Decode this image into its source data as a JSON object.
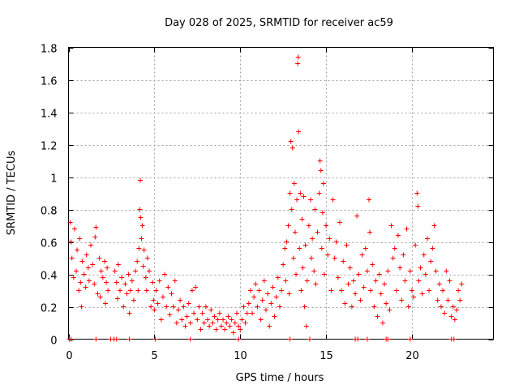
{
  "chart_data": {
    "type": "scatter",
    "title": "Day 028 of 2025, SRMTID for receiver ac59",
    "xlabel": "GPS time / hours",
    "ylabel": "SRMTID / TECUs",
    "xlim": [
      0,
      24.75
    ],
    "ylim": [
      0,
      1.8
    ],
    "xticks": [
      0,
      5,
      10,
      15,
      20
    ],
    "xtick_labels": [
      "0",
      "5",
      "10",
      "15",
      "20"
    ],
    "yticks": [
      0,
      0.2,
      0.4,
      0.6,
      0.8,
      1,
      1.2,
      1.4,
      1.6,
      1.8
    ],
    "ytick_labels": [
      "0",
      "0.2",
      "0.4",
      "0.6",
      "0.8",
      "1",
      "1.2",
      "1.4",
      "1.6",
      "1.8"
    ],
    "grid": true,
    "legend": "none",
    "marker": "+",
    "series_color": "#ff0000",
    "series": [
      {
        "name": "SRMTID",
        "points": [
          [
            0.1,
            0.72
          ],
          [
            0.15,
            0.6
          ],
          [
            0.2,
            0.5
          ],
          [
            0.3,
            0.38
          ],
          [
            0.35,
            0.68
          ],
          [
            0.45,
            0.42
          ],
          [
            0.5,
            0.55
          ],
          [
            0.6,
            0.3
          ],
          [
            0.65,
            0.62
          ],
          [
            0.7,
            0.35
          ],
          [
            0.75,
            0.2
          ],
          [
            0.8,
            0.48
          ],
          [
            0.9,
            0.4
          ],
          [
            1.0,
            0.32
          ],
          [
            1.05,
            0.52
          ],
          [
            1.15,
            0.44
          ],
          [
            1.2,
            0.36
          ],
          [
            1.3,
            0.58
          ],
          [
            1.4,
            0.46
          ],
          [
            1.5,
            0.34
          ],
          [
            1.55,
            0.63
          ],
          [
            1.6,
            0.69
          ],
          [
            1.7,
            0.28
          ],
          [
            1.8,
            0.5
          ],
          [
            1.85,
            0.26
          ],
          [
            1.9,
            0.42
          ],
          [
            2.0,
            0.38
          ],
          [
            2.1,
            0.48
          ],
          [
            2.15,
            0.22
          ],
          [
            2.2,
            0.35
          ],
          [
            2.25,
            0.44
          ],
          [
            2.3,
            0.3
          ],
          [
            2.7,
            0.42
          ],
          [
            2.8,
            0.35
          ],
          [
            2.85,
            0.25
          ],
          [
            2.9,
            0.46
          ],
          [
            3.0,
            0.3
          ],
          [
            3.1,
            0.38
          ],
          [
            3.2,
            0.2
          ],
          [
            3.3,
            0.34
          ],
          [
            3.4,
            0.28
          ],
          [
            3.5,
            0.4
          ],
          [
            3.55,
            0.16
          ],
          [
            3.6,
            0.3
          ],
          [
            3.7,
            0.36
          ],
          [
            3.8,
            0.24
          ],
          [
            3.9,
            0.42
          ],
          [
            4.0,
            0.48
          ],
          [
            4.05,
            0.3
          ],
          [
            4.1,
            0.56
          ],
          [
            4.15,
            0.8
          ],
          [
            4.18,
            0.98
          ],
          [
            4.2,
            0.75
          ],
          [
            4.25,
            0.62
          ],
          [
            4.3,
            0.7
          ],
          [
            4.35,
            0.45
          ],
          [
            4.4,
            0.55
          ],
          [
            4.5,
            0.38
          ],
          [
            4.55,
            0.3
          ],
          [
            4.6,
            0.5
          ],
          [
            4.7,
            0.42
          ],
          [
            4.8,
            0.2
          ],
          [
            4.9,
            0.35
          ],
          [
            4.95,
            0.24
          ],
          [
            5.0,
            0.18
          ],
          [
            5.1,
            0.3
          ],
          [
            5.2,
            0.22
          ],
          [
            5.3,
            0.36
          ],
          [
            5.4,
            0.12
          ],
          [
            5.5,
            0.26
          ],
          [
            5.6,
            0.4
          ],
          [
            5.7,
            0.2
          ],
          [
            5.8,
            0.32
          ],
          [
            5.9,
            0.15
          ],
          [
            6.0,
            0.28
          ],
          [
            6.1,
            0.2
          ],
          [
            6.2,
            0.36
          ],
          [
            6.3,
            0.1
          ],
          [
            6.4,
            0.18
          ],
          [
            6.5,
            0.24
          ],
          [
            6.6,
            0.12
          ],
          [
            6.7,
            0.2
          ],
          [
            6.8,
            0.08
          ],
          [
            6.9,
            0.14
          ],
          [
            7.0,
            0.22
          ],
          [
            7.1,
            0.1
          ],
          [
            7.2,
            0.3
          ],
          [
            7.3,
            0.16
          ],
          [
            7.4,
            0.32
          ],
          [
            7.5,
            0.12
          ],
          [
            7.6,
            0.2
          ],
          [
            7.7,
            0.06
          ],
          [
            7.8,
            0.16
          ],
          [
            7.9,
            0.1
          ],
          [
            8.0,
            0.2
          ],
          [
            8.1,
            0.12
          ],
          [
            8.2,
            0.08
          ],
          [
            8.3,
            0.18
          ],
          [
            8.4,
            0.1
          ],
          [
            8.5,
            0.14
          ],
          [
            8.6,
            0.06
          ],
          [
            8.7,
            0.12
          ],
          [
            8.8,
            0.16
          ],
          [
            8.9,
            0.08
          ],
          [
            9.0,
            0.12
          ],
          [
            9.1,
            0.06
          ],
          [
            9.2,
            0.1
          ],
          [
            9.3,
            0.14
          ],
          [
            9.4,
            0.08
          ],
          [
            9.5,
            0.12
          ],
          [
            9.6,
            0.04
          ],
          [
            9.7,
            0.1
          ],
          [
            9.8,
            0.16
          ],
          [
            9.9,
            0.08
          ],
          [
            10.0,
            0.06
          ],
          [
            10.1,
            0.12
          ],
          [
            10.2,
            0.2
          ],
          [
            10.3,
            0.1
          ],
          [
            10.4,
            0.16
          ],
          [
            10.5,
            0.22
          ],
          [
            10.6,
            0.3
          ],
          [
            10.7,
            0.16
          ],
          [
            10.8,
            0.26
          ],
          [
            10.9,
            0.34
          ],
          [
            11.0,
            0.2
          ],
          [
            11.1,
            0.3
          ],
          [
            11.2,
            0.12
          ],
          [
            11.3,
            0.24
          ],
          [
            11.4,
            0.36
          ],
          [
            11.5,
            0.18
          ],
          [
            11.6,
            0.28
          ],
          [
            11.7,
            0.08
          ],
          [
            11.8,
            0.22
          ],
          [
            11.9,
            0.32
          ],
          [
            12.0,
            0.14
          ],
          [
            12.1,
            0.26
          ],
          [
            12.2,
            0.38
          ],
          [
            12.3,
            0.2
          ],
          [
            12.4,
            0.3
          ],
          [
            12.5,
            0.46
          ],
          [
            12.6,
            0.56
          ],
          [
            12.65,
            0.36
          ],
          [
            12.7,
            0.6
          ],
          [
            12.8,
            0.7
          ],
          [
            12.85,
            0.28
          ],
          [
            12.9,
            0.9
          ],
          [
            12.95,
            1.22
          ],
          [
            13.0,
            0.8
          ],
          [
            13.05,
            1.18
          ],
          [
            13.1,
            0.5
          ],
          [
            13.15,
            0.96
          ],
          [
            13.2,
            0.66
          ],
          [
            13.25,
            0.4
          ],
          [
            13.3,
            0.86
          ],
          [
            13.35,
            1.7
          ],
          [
            13.38,
            1.74
          ],
          [
            13.4,
            1.28
          ],
          [
            13.45,
            0.56
          ],
          [
            13.5,
            0.9
          ],
          [
            13.55,
            0.3
          ],
          [
            13.6,
            0.74
          ],
          [
            13.65,
            0.44
          ],
          [
            13.7,
            0.88
          ],
          [
            13.75,
            0.2
          ],
          [
            13.8,
            0.58
          ],
          [
            13.85,
            0.08
          ],
          [
            13.9,
            0.36
          ],
          [
            14.0,
            0.7
          ],
          [
            14.1,
            0.86
          ],
          [
            14.15,
            0.5
          ],
          [
            14.2,
            0.62
          ],
          [
            14.3,
            0.42
          ],
          [
            14.35,
            0.8
          ],
          [
            14.4,
            0.34
          ],
          [
            14.5,
            0.66
          ],
          [
            14.6,
            0.9
          ],
          [
            14.65,
            1.1
          ],
          [
            14.7,
            1.04
          ],
          [
            14.75,
            0.56
          ],
          [
            14.8,
            0.78
          ],
          [
            14.85,
            0.96
          ],
          [
            14.9,
            0.4
          ],
          [
            15.0,
            0.7
          ],
          [
            15.1,
            0.52
          ],
          [
            15.2,
            0.62
          ],
          [
            15.3,
            0.3
          ],
          [
            15.4,
            0.86
          ],
          [
            15.5,
            0.5
          ],
          [
            15.6,
            0.6
          ],
          [
            15.7,
            0.38
          ],
          [
            15.8,
            0.72
          ],
          [
            15.9,
            0.3
          ],
          [
            16.0,
            0.48
          ],
          [
            16.1,
            0.22
          ],
          [
            16.2,
            0.58
          ],
          [
            16.3,
            0.34
          ],
          [
            16.4,
            0.44
          ],
          [
            16.5,
            0.2
          ],
          [
            16.6,
            0.36
          ],
          [
            16.7,
            0.28
          ],
          [
            16.8,
            0.76
          ],
          [
            16.9,
            0.4
          ],
          [
            17.0,
            0.24
          ],
          [
            17.1,
            0.52
          ],
          [
            17.2,
            0.32
          ],
          [
            17.3,
            0.56
          ],
          [
            17.4,
            0.42
          ],
          [
            17.5,
            0.86
          ],
          [
            17.55,
            0.66
          ],
          [
            17.6,
            0.3
          ],
          [
            17.7,
            0.46
          ],
          [
            17.8,
            0.2
          ],
          [
            17.9,
            0.36
          ],
          [
            18.0,
            0.14
          ],
          [
            18.1,
            0.4
          ],
          [
            18.2,
            0.28
          ],
          [
            18.3,
            0.1
          ],
          [
            18.4,
            0.34
          ],
          [
            18.5,
            0.22
          ],
          [
            18.6,
            0.42
          ],
          [
            18.7,
            0.18
          ],
          [
            18.8,
            0.7
          ],
          [
            18.9,
            0.5
          ],
          [
            19.0,
            0.56
          ],
          [
            19.1,
            0.3
          ],
          [
            19.2,
            0.64
          ],
          [
            19.3,
            0.44
          ],
          [
            19.4,
            0.24
          ],
          [
            19.5,
            0.52
          ],
          [
            19.6,
            0.36
          ],
          [
            19.7,
            0.68
          ],
          [
            19.8,
            0.2
          ],
          [
            19.9,
            0.42
          ],
          [
            20.0,
            0.3
          ],
          [
            20.1,
            0.26
          ],
          [
            20.2,
            0.58
          ],
          [
            20.3,
            0.9
          ],
          [
            20.35,
            0.82
          ],
          [
            20.4,
            0.36
          ],
          [
            20.5,
            0.44
          ],
          [
            20.6,
            0.28
          ],
          [
            20.7,
            0.52
          ],
          [
            20.8,
            0.4
          ],
          [
            20.9,
            0.62
          ],
          [
            21.0,
            0.3
          ],
          [
            21.1,
            0.48
          ],
          [
            21.2,
            0.56
          ],
          [
            21.3,
            0.7
          ],
          [
            21.4,
            0.42
          ],
          [
            21.5,
            0.24
          ],
          [
            21.6,
            0.34
          ],
          [
            21.7,
            0.2
          ],
          [
            21.8,
            0.3
          ],
          [
            21.9,
            0.16
          ],
          [
            22.0,
            0.42
          ],
          [
            22.1,
            0.24
          ],
          [
            22.2,
            0.36
          ],
          [
            22.3,
            0.14
          ],
          [
            22.4,
            0.2
          ],
          [
            22.5,
            0.12
          ],
          [
            22.6,
            0.18
          ],
          [
            22.7,
            0.3
          ],
          [
            22.8,
            0.24
          ],
          [
            22.9,
            0.34
          ]
        ],
        "zero_points_x": [
          0.05,
          0.15,
          1.6,
          2.45,
          2.65,
          2.8,
          3.55,
          5.05,
          7.1,
          9.9,
          12.9,
          14.05,
          16.7,
          16.85,
          17.4,
          18.5,
          18.6,
          19.9,
          22.3,
          22.45
        ]
      }
    ]
  }
}
